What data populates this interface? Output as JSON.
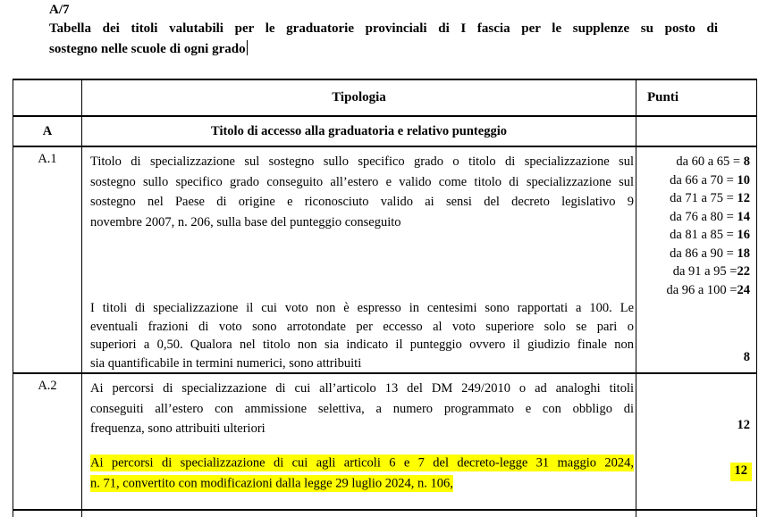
{
  "colors": {
    "highlight": "#ffff00",
    "ink": "#000000",
    "background": "#ffffff"
  },
  "header": {
    "code": "A/7",
    "title_line1": "Tabella dei titoli valutabili per le graduatorie provinciali di I fascia per le supplenze su posto di",
    "title_line2": "sostegno nelle scuole di ogni grado"
  },
  "table": {
    "col_tipologia": "Tipologia",
    "col_punti": "Punti",
    "row_a": {
      "label": "A",
      "title": "Titolo di accesso alla graduatoria e relativo punteggio"
    },
    "row_a1": {
      "label": "A.1",
      "para1_lines": [
        "Titolo di specializzazione sul sostegno sullo specifico grado o titolo di specializzazione sul",
        "sostegno sullo specifico grado conseguito all’estero e valido come titolo di specializzazione sul",
        "sostegno nel Paese di origine e riconosciuto valido ai sensi del decreto legislativo 9",
        "novembre 2007, n. 206, sulla base del punteggio conseguito"
      ],
      "para2_lines": [
        "I titoli di specializzazione il cui voto non è espresso in centesimi sono rapportati a 100. Le",
        "eventuali frazioni di voto sono arrotondate per eccesso al voto superiore solo se pari o",
        "superiori a 0,50. Qualora nel titolo non sia indicato il punteggio ovvero il giudizio finale non",
        "sia quantificabile in termini numerici, sono attribuiti"
      ],
      "para2_points": "8",
      "score_scale": [
        {
          "range": "da 60 a 65 = ",
          "points": "8"
        },
        {
          "range": "da 66 a 70 = ",
          "points": "10"
        },
        {
          "range": "da 71 a 75 = ",
          "points": "12"
        },
        {
          "range": "da 76 a 80 = ",
          "points": "14"
        },
        {
          "range": "da 81 a 85 = ",
          "points": "16"
        },
        {
          "range": "da 86 a 90 = ",
          "points": "18"
        },
        {
          "range": "da 91 a 95 =",
          "points": "22"
        },
        {
          "range": "da 96 a 100 =",
          "points": "24"
        }
      ]
    },
    "row_a2": {
      "label": "A.2",
      "para1_lines": [
        "Ai percorsi di specializzazione di cui all’articolo 13 del DM 249/2010 o ad analoghi titoli",
        "conseguiti all’estero con ammissione selettiva, a numero programmato e con obbligo di",
        "frequenza, sono attribuiti ulteriori"
      ],
      "para1_points": "12",
      "para2_highlight_lines": [
        "Ai percorsi di specializzazione di cui agli articoli 6 e 7 del decreto-legge 31 maggio 2024,",
        "n. 71, convertito con modificazioni dalla legge 29 luglio 2024, n. 106,"
      ],
      "para2_points": "12"
    }
  }
}
